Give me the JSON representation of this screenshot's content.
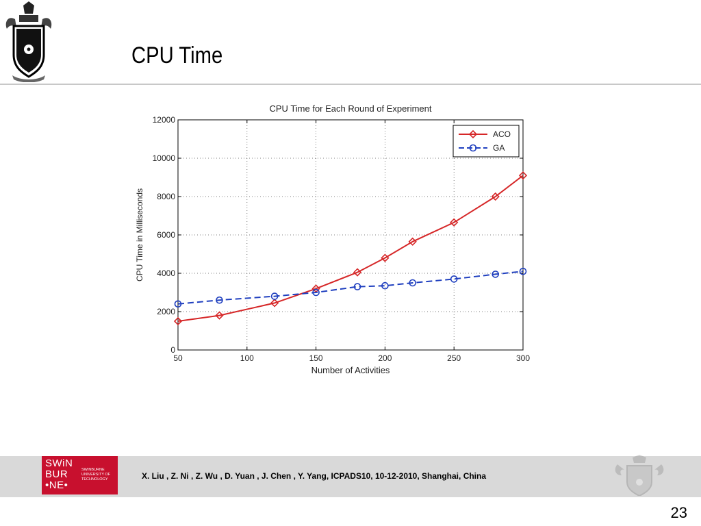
{
  "slide": {
    "title": "CPU Time",
    "page_number": "23"
  },
  "footer": {
    "logo_text": [
      "SWiN",
      "BUR",
      "•NE•"
    ],
    "logo_subtitle": [
      "SWINBURNE",
      "UNIVERSITY OF",
      "TECHNOLOGY"
    ],
    "citation": "X. Liu , Z. Ni , Z. Wu , D. Yuan , J. Chen , Y. Yang, ICPADS10, 10-12-2010, Shanghai, China"
  },
  "chart_data": {
    "type": "line",
    "title": "CPU Time for Each Round of Experiment",
    "xlabel": "Number of Activities",
    "ylabel": "CPU Time in Milliseconds",
    "xlim": [
      50,
      300
    ],
    "ylim": [
      0,
      12000
    ],
    "xticks": [
      50,
      100,
      150,
      200,
      250,
      300
    ],
    "yticks": [
      0,
      2000,
      4000,
      6000,
      8000,
      10000,
      12000
    ],
    "grid": true,
    "legend_position": "top-right",
    "series": [
      {
        "name": "ACO",
        "color": "#d62728",
        "marker": "diamond",
        "line_style": "solid",
        "x": [
          50,
          80,
          120,
          150,
          180,
          200,
          220,
          250,
          280,
          300
        ],
        "y": [
          1500,
          1800,
          2450,
          3200,
          4050,
          4800,
          5650,
          6650,
          8000,
          9100
        ]
      },
      {
        "name": "GA",
        "color": "#1f3fbf",
        "marker": "circle",
        "line_style": "dashed",
        "x": [
          50,
          80,
          120,
          150,
          180,
          200,
          220,
          250,
          280,
          300
        ],
        "y": [
          2400,
          2600,
          2800,
          3000,
          3300,
          3350,
          3500,
          3700,
          3950,
          4100
        ]
      }
    ]
  }
}
